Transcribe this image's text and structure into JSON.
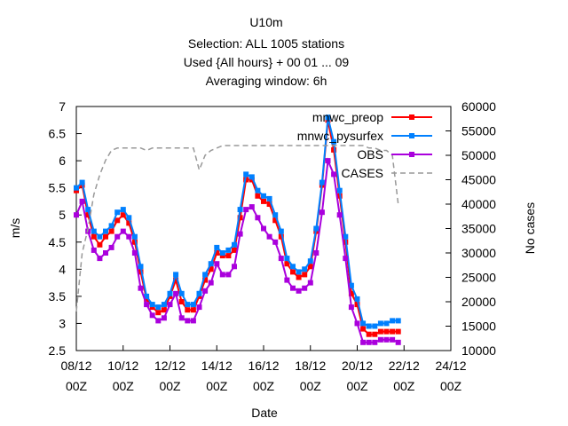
{
  "chart_data": {
    "type": "line",
    "title_lines": [
      "U10m",
      "Selection: ALL    1005 stations",
      "Used {All hours} + 00 01 ... 09",
      "Averaging window:  6h"
    ],
    "xlabel": "Date",
    "ylabel": "m/s",
    "y2label": "No cases",
    "x_ticks": [
      {
        "x": 0,
        "top": "08/12",
        "bottom": "00Z"
      },
      {
        "x": 2,
        "top": "10/12",
        "bottom": "00Z"
      },
      {
        "x": 4,
        "top": "12/12",
        "bottom": "00Z"
      },
      {
        "x": 6,
        "top": "14/12",
        "bottom": "00Z"
      },
      {
        "x": 8,
        "top": "16/12",
        "bottom": "00Z"
      },
      {
        "x": 10,
        "top": "18/12",
        "bottom": "00Z"
      },
      {
        "x": 12,
        "top": "20/12",
        "bottom": "00Z"
      },
      {
        "x": 14,
        "top": "22/12",
        "bottom": "00Z"
      },
      {
        "x": 16,
        "top": "24/12",
        "bottom": "00Z"
      }
    ],
    "xlim": [
      0,
      16
    ],
    "y_ticks": [
      "2.5",
      "3",
      "3.5",
      "4",
      "4.5",
      "5",
      "5.5",
      "6",
      "6.5",
      "7"
    ],
    "ylim": [
      2.5,
      7
    ],
    "y2_ticks": [
      "10000",
      "15000",
      "20000",
      "25000",
      "30000",
      "35000",
      "40000",
      "45000",
      "50000",
      "55000",
      "60000"
    ],
    "y2lim": [
      10000,
      60000
    ],
    "x_step_days": 0.25,
    "series": [
      {
        "name": "mnwc_preop",
        "color": "#ff0000",
        "axis": "y1",
        "values": [
          5.45,
          5.55,
          5.0,
          4.6,
          4.45,
          4.6,
          4.7,
          4.9,
          5.0,
          4.85,
          4.5,
          3.95,
          3.45,
          3.3,
          3.2,
          3.25,
          3.5,
          3.8,
          3.4,
          3.25,
          3.25,
          3.5,
          3.8,
          4.0,
          4.3,
          4.25,
          4.25,
          4.35,
          4.95,
          5.65,
          5.65,
          5.35,
          5.25,
          5.2,
          4.9,
          4.6,
          4.1,
          3.95,
          3.85,
          3.9,
          4.05,
          4.7,
          5.55,
          6.75,
          6.2,
          5.35,
          4.5,
          3.55,
          3.35,
          2.9,
          2.8,
          2.8,
          2.85,
          2.85,
          2.85,
          2.85
        ]
      },
      {
        "name": "mnwc_pysurfex",
        "color": "#0080ff",
        "axis": "y1",
        "values": [
          5.5,
          5.6,
          5.1,
          4.7,
          4.6,
          4.7,
          4.8,
          5.05,
          5.1,
          4.95,
          4.6,
          4.05,
          3.5,
          3.35,
          3.3,
          3.35,
          3.55,
          3.9,
          3.55,
          3.35,
          3.35,
          3.55,
          3.9,
          4.1,
          4.4,
          4.3,
          4.35,
          4.45,
          5.1,
          5.75,
          5.7,
          5.45,
          5.35,
          5.3,
          5.0,
          4.7,
          4.2,
          4.05,
          3.95,
          4.0,
          4.15,
          4.75,
          5.6,
          6.8,
          6.35,
          5.45,
          4.6,
          3.7,
          3.45,
          3.0,
          2.95,
          2.95,
          3.0,
          3.0,
          3.05,
          3.05
        ]
      },
      {
        "name": "OBS",
        "color": "#aa00dd",
        "axis": "y1",
        "values": [
          5.0,
          5.25,
          4.7,
          4.35,
          4.2,
          4.3,
          4.4,
          4.6,
          4.7,
          4.6,
          4.3,
          3.65,
          3.35,
          3.15,
          3.05,
          3.1,
          3.35,
          3.55,
          3.1,
          3.05,
          3.05,
          3.3,
          3.6,
          3.75,
          4.1,
          3.9,
          3.9,
          4.05,
          4.65,
          5.1,
          5.15,
          4.95,
          4.75,
          4.6,
          4.5,
          4.2,
          3.8,
          3.65,
          3.6,
          3.65,
          3.75,
          4.3,
          5.05,
          6.0,
          5.75,
          5.0,
          4.2,
          3.3,
          3.0,
          2.65,
          2.65,
          2.65,
          2.7,
          2.7,
          2.7,
          2.65
        ]
      },
      {
        "name": "CASES",
        "color": "#999999",
        "axis": "y2",
        "dash": true,
        "values": [
          18000,
          30000,
          35000,
          42000,
          46000,
          49000,
          51000,
          51500,
          51500,
          51500,
          51500,
          51500,
          51000,
          51500,
          51500,
          51500,
          51500,
          51500,
          51500,
          51500,
          51500,
          47000,
          50000,
          51000,
          51500,
          52000,
          52000,
          52000,
          52000,
          52000,
          52000,
          52000,
          52000,
          52000,
          52000,
          52000,
          52000,
          52000,
          52000,
          52000,
          52000,
          52000,
          52000,
          52000,
          52000,
          52000,
          52000,
          52000,
          52000,
          52000,
          51500,
          51500,
          51000,
          51000,
          50000,
          40000
        ]
      }
    ]
  }
}
